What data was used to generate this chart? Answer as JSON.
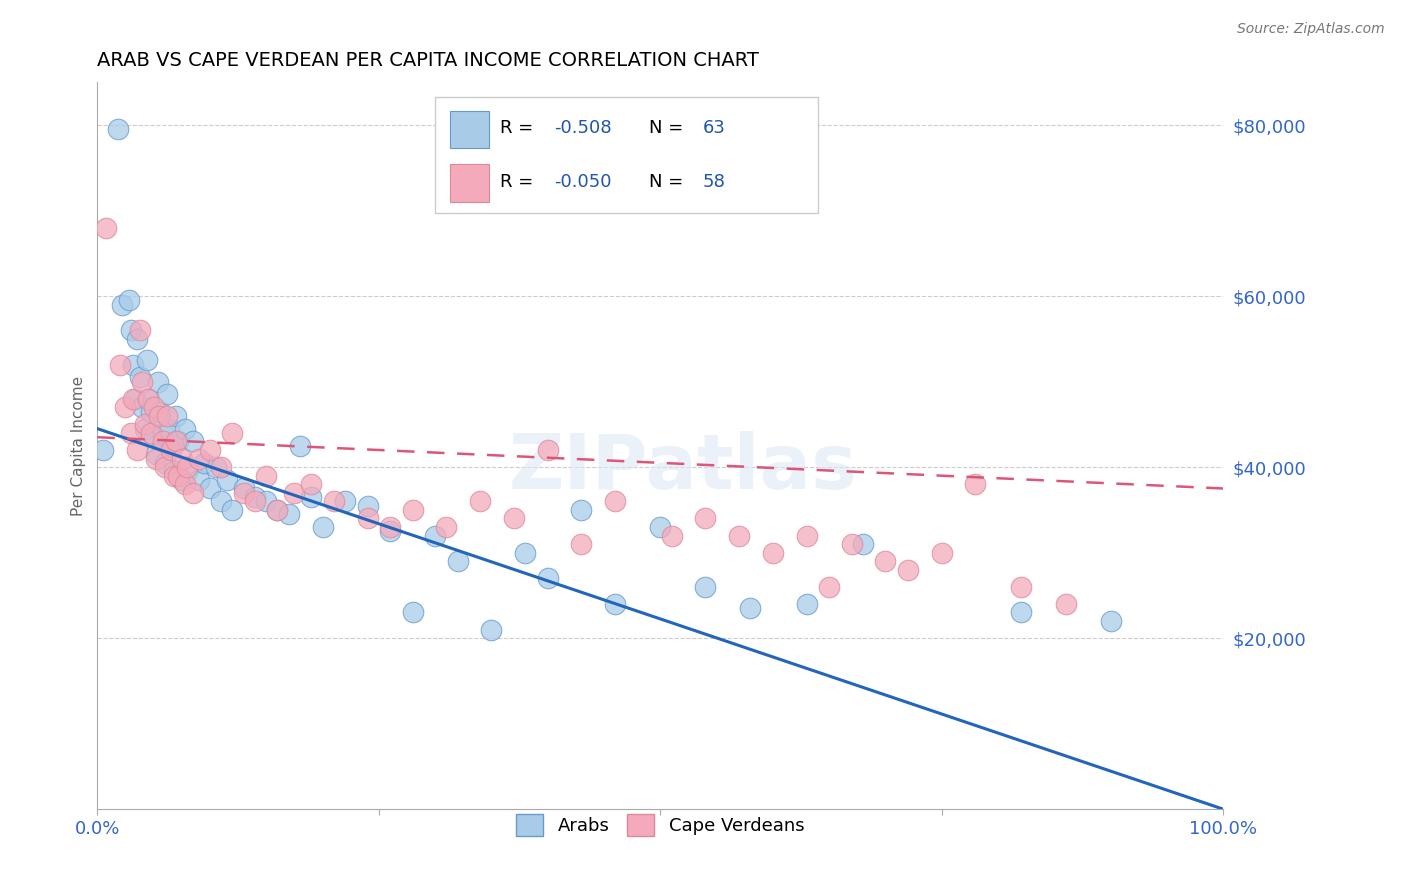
{
  "title": "ARAB VS CAPE VERDEAN PER CAPITA INCOME CORRELATION CHART",
  "source": "Source: ZipAtlas.com",
  "ylabel": "Per Capita Income",
  "xlim": [
    0,
    1.0
  ],
  "ylim": [
    0,
    85000
  ],
  "ytick_positions": [
    20000,
    40000,
    60000,
    80000
  ],
  "ytick_labels": [
    "$20,000",
    "$40,000",
    "$60,000",
    "$80,000"
  ],
  "arab_color": "#a8cce8",
  "cape_verdean_color": "#f4aabb",
  "arab_edge_color": "#6699cc",
  "cape_verdean_edge_color": "#dd8899",
  "regression_arab_color": "#2266bb",
  "regression_cv_color": "#dd5577",
  "arab_R": "-0.508",
  "arab_N": "63",
  "cv_R": "-0.050",
  "cv_N": "58",
  "legend_text_color": "#2255aa",
  "watermark": "ZIPatlas",
  "arab_regression_x0": 0.0,
  "arab_regression_y0": 44500,
  "arab_regression_x1": 1.0,
  "arab_regression_y1": 0,
  "cv_regression_x0": 0.0,
  "cv_regression_y0": 43500,
  "cv_regression_x1": 1.0,
  "cv_regression_y1": 37500,
  "arab_x": [
    0.005,
    0.018,
    0.022,
    0.028,
    0.03,
    0.032,
    0.033,
    0.035,
    0.038,
    0.04,
    0.042,
    0.044,
    0.046,
    0.048,
    0.05,
    0.052,
    0.054,
    0.056,
    0.058,
    0.06,
    0.062,
    0.064,
    0.066,
    0.068,
    0.07,
    0.072,
    0.075,
    0.078,
    0.08,
    0.085,
    0.09,
    0.095,
    0.1,
    0.105,
    0.11,
    0.115,
    0.12,
    0.13,
    0.14,
    0.15,
    0.16,
    0.17,
    0.18,
    0.19,
    0.2,
    0.22,
    0.24,
    0.26,
    0.28,
    0.3,
    0.32,
    0.35,
    0.38,
    0.4,
    0.43,
    0.46,
    0.5,
    0.54,
    0.58,
    0.63,
    0.68,
    0.82,
    0.9
  ],
  "arab_y": [
    42000,
    79500,
    59000,
    59500,
    56000,
    52000,
    48000,
    55000,
    50500,
    47000,
    44500,
    52500,
    48000,
    46500,
    43500,
    41500,
    50000,
    46500,
    44000,
    40500,
    48500,
    44500,
    42500,
    39500,
    46000,
    43000,
    38500,
    44500,
    39500,
    43000,
    38500,
    40500,
    37500,
    40000,
    36000,
    38500,
    35000,
    37500,
    36500,
    36000,
    35000,
    34500,
    42500,
    36500,
    33000,
    36000,
    35500,
    32500,
    23000,
    32000,
    29000,
    21000,
    30000,
    27000,
    35000,
    24000,
    33000,
    26000,
    23500,
    24000,
    31000,
    23000,
    22000
  ],
  "cv_x": [
    0.008,
    0.02,
    0.025,
    0.03,
    0.032,
    0.035,
    0.038,
    0.04,
    0.042,
    0.045,
    0.048,
    0.05,
    0.052,
    0.055,
    0.058,
    0.06,
    0.062,
    0.065,
    0.068,
    0.07,
    0.072,
    0.075,
    0.078,
    0.08,
    0.085,
    0.09,
    0.1,
    0.11,
    0.12,
    0.13,
    0.14,
    0.15,
    0.16,
    0.175,
    0.19,
    0.21,
    0.24,
    0.26,
    0.28,
    0.31,
    0.34,
    0.37,
    0.4,
    0.43,
    0.46,
    0.51,
    0.54,
    0.57,
    0.6,
    0.63,
    0.65,
    0.67,
    0.7,
    0.72,
    0.75,
    0.78,
    0.82,
    0.86
  ],
  "cv_y": [
    68000,
    52000,
    47000,
    44000,
    48000,
    42000,
    56000,
    50000,
    45000,
    48000,
    44000,
    47000,
    41000,
    46000,
    43000,
    40000,
    46000,
    42000,
    39000,
    43000,
    39000,
    41000,
    38000,
    40000,
    37000,
    41000,
    42000,
    40000,
    44000,
    37000,
    36000,
    39000,
    35000,
    37000,
    38000,
    36000,
    34000,
    33000,
    35000,
    33000,
    36000,
    34000,
    42000,
    31000,
    36000,
    32000,
    34000,
    32000,
    30000,
    32000,
    26000,
    31000,
    29000,
    28000,
    30000,
    38000,
    26000,
    24000
  ]
}
